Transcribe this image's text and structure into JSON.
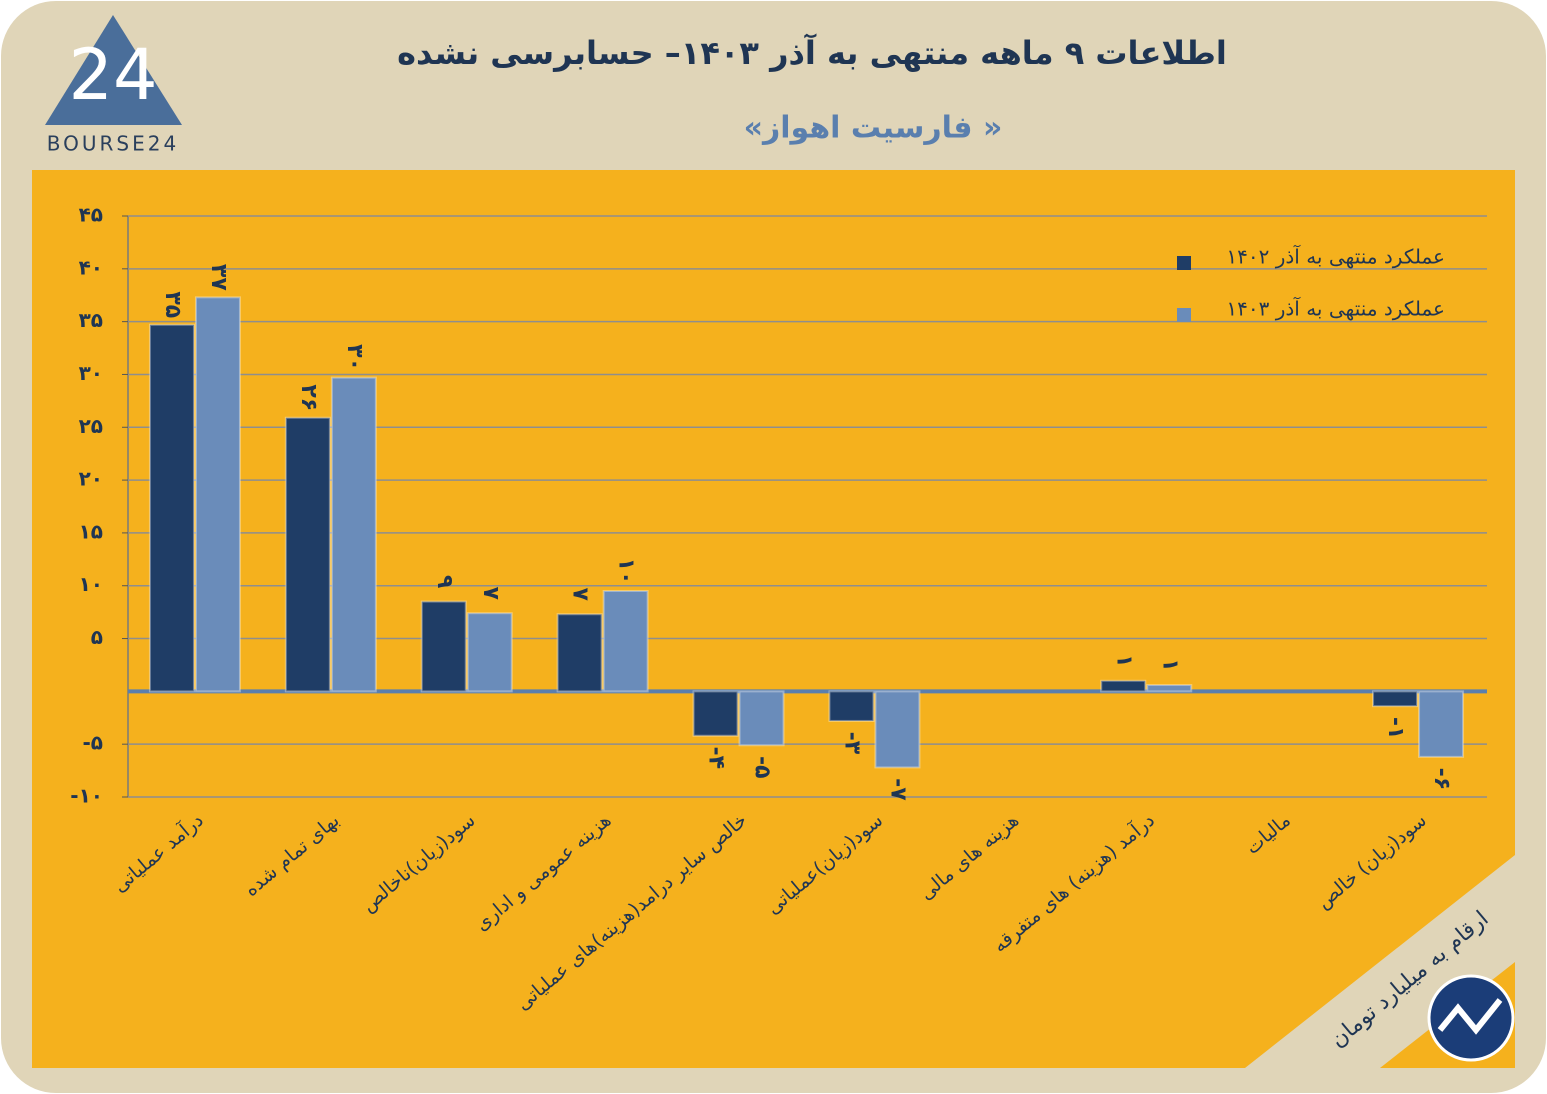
{
  "chart_data": {
    "type": "bar",
    "title": "اطلاعات ۹ ماهه منتهی به آذر ۱۴۰۳– حسابرسی نشده",
    "subtitle": "«فارسیت اهواز »",
    "logo_text": "BOURSE24",
    "logo_mark": "24",
    "note": "ارقام به میلیارد تومان",
    "categories": [
      "درآمد عملیاتی",
      "بهای تمام شده",
      "سود(زیان)ناخالص",
      "هزینه عمومی و اداری",
      "خالص سایر درامد(هزینه)های عملیاتی",
      "سود(زیان)عملیاتی",
      "هزینه های مالی",
      "درآمد (هزینه) های متفرقه",
      "مالیات",
      "سود(زیان) خالص"
    ],
    "series": [
      {
        "name": "عملکرد منتهی به آذر ۱۴۰۲",
        "color": "#1f3d66",
        "values": [
          34.7,
          25.9,
          8.5,
          7.3,
          -4.2,
          -2.8,
          null,
          1,
          null,
          -1.4
        ],
        "value_labels": [
          "۳۵",
          "۲۶",
          "۹",
          "۷",
          "-۴",
          "-۳",
          null,
          "۱",
          null,
          "-۱"
        ]
      },
      {
        "name": "عملکرد منتهی به آذر ۱۴۰۳",
        "color": "#6a8cba",
        "values": [
          37.3,
          29.7,
          7.4,
          9.5,
          -5.1,
          -7.2,
          null,
          0.6,
          null,
          -6.2
        ],
        "value_labels": [
          "۳۷",
          "۳۰",
          "۷",
          "۱۰",
          "-۵",
          "-۷",
          null,
          "۱",
          null,
          "-۶"
        ]
      }
    ],
    "ylim": [
      -10,
      45
    ],
    "yticks": [
      {
        "value": -10,
        "label": "-۱۰"
      },
      {
        "value": -5,
        "label": "-۵"
      },
      {
        "value": 5,
        "label": "۵"
      },
      {
        "value": 10,
        "label": "۱۰"
      },
      {
        "value": 15,
        "label": "۱۵"
      },
      {
        "value": 20,
        "label": "۲۰"
      },
      {
        "value": 25,
        "label": "۲۵"
      },
      {
        "value": 30,
        "label": "۳۰"
      },
      {
        "value": 35,
        "label": "۳۵"
      },
      {
        "value": 40,
        "label": "۴۰"
      },
      {
        "value": 45,
        "label": "۴۵"
      }
    ],
    "grid": true,
    "legend": "top-right"
  }
}
